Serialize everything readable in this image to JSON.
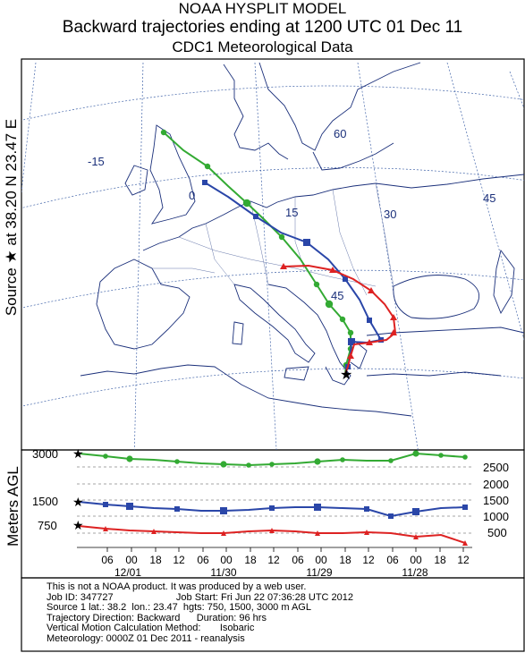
{
  "header": {
    "model": "NOAA HYSPLIT MODEL",
    "subtitle": "Backward trajectories ending at 1200 UTC 01 Dec 11",
    "data_source": "CDC1 Meteorological Data"
  },
  "source_label": "Source ★ at  38.20 N   23.47 E",
  "vertical_axis_label": "Meters AGL",
  "map": {
    "grid_labels": [
      "-15",
      "0",
      "15",
      "30",
      "45",
      "60",
      "45"
    ],
    "trajectories": [
      {
        "name": "750 m",
        "color": "#dd2222",
        "marker": "triangle"
      },
      {
        "name": "1500 m",
        "color": "#2a46a8",
        "marker": "square"
      },
      {
        "name": "3000 m",
        "color": "#33aa33",
        "marker": "circle"
      }
    ]
  },
  "profile": {
    "left_labels": [
      "3000",
      "1500",
      "750"
    ],
    "right_ticks": [
      "2500",
      "2000",
      "1500",
      "1000",
      "500"
    ],
    "hour_ticks": [
      "06",
      "00",
      "18",
      "12",
      "06",
      "00",
      "18",
      "12",
      "06",
      "00",
      "18",
      "12",
      "06",
      "00",
      "18",
      "12"
    ],
    "date_labels": [
      "12/01",
      "11/30",
      "11/29",
      "11/28"
    ]
  },
  "footer": {
    "line1": "This is not a NOAA product. It was produced by a web user.",
    "line2": "Job ID: 347727                       Job Start: Fri Jun 22 07:36:28 UTC 2012",
    "line3": "Source 1 lat.: 38.2  lon.: 23.47  hgts: 750, 1500, 3000 m AGL",
    "line4": "Trajectory Direction: Backward      Duration: 96 hrs",
    "line5": "Vertical Motion Calculation Method:       Isobaric",
    "line6": "Meteorology: 0000Z 01 Dec 2011 - reanalysis"
  }
}
